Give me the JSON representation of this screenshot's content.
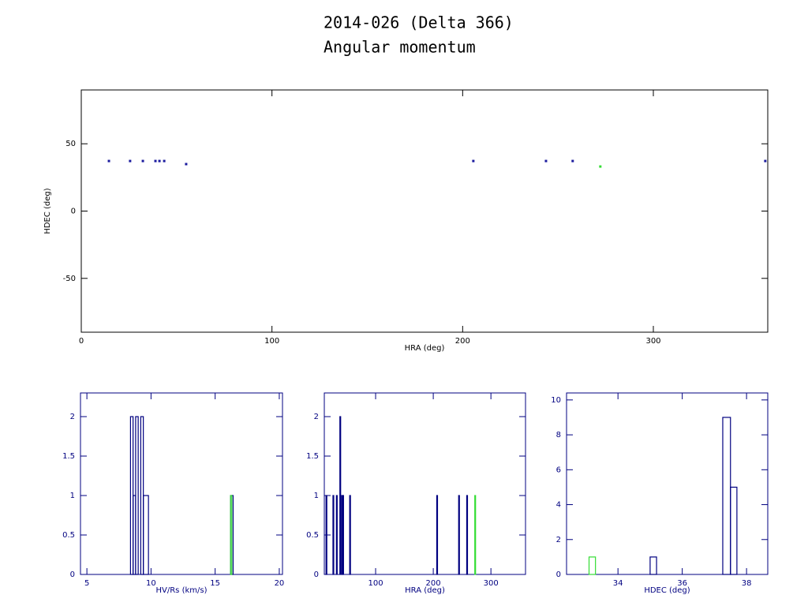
{
  "title": "2014-026 (Delta 366)",
  "subtitle": "Angular momentum",
  "chart_data": [
    {
      "type": "scatter",
      "xlabel": "HRA (deg)",
      "ylabel": "HDEC (deg)",
      "xlim": [
        0,
        360
      ],
      "ylim": [
        -90,
        90
      ],
      "xticks": [
        0,
        100,
        200,
        300
      ],
      "yticks": [
        -50,
        0,
        50
      ],
      "frame_color": "#000000",
      "series": [
        {
          "color": "#1a1a9e",
          "x": [
            14.5,
            25.6,
            32.3,
            38.9,
            41,
            43.5,
            55,
            205.6,
            243.7,
            257.7,
            358.7
          ],
          "values": [
            37.2,
            37.2,
            37.2,
            37.2,
            37.2,
            37.2,
            34.9,
            37.2,
            37.2,
            37.2,
            37.2
          ]
        },
        {
          "color": "#33dd33",
          "x": [
            272.2
          ],
          "values": [
            33.1
          ]
        }
      ]
    },
    {
      "type": "histogram",
      "xlabel": "HV/Rs (km/s)",
      "xlim": [
        4.5,
        20.25
      ],
      "ylim": [
        0,
        2.3
      ],
      "xticks": [
        5,
        10,
        15,
        20
      ],
      "yticks": [
        0,
        0.5,
        1,
        1.5,
        2
      ],
      "frame_color": "#000080",
      "series": [
        {
          "color": "#000080",
          "bins": [
            8.4,
            8.6,
            8.8,
            9.0,
            9.2,
            9.4,
            9.8,
            16.2,
            16.4
          ],
          "values": [
            2,
            1,
            2,
            0,
            2,
            1,
            0,
            1
          ]
        },
        {
          "color": "#33dd33",
          "bins": [
            16.2,
            16.3
          ],
          "values": [
            1
          ]
        }
      ]
    },
    {
      "type": "histogram",
      "xlabel": "HRA (deg)",
      "xlim": [
        11,
        360
      ],
      "ylim": [
        0,
        2.3
      ],
      "xticks": [
        100,
        200,
        300
      ],
      "yticks": [
        0,
        0.5,
        1,
        1.5,
        2
      ],
      "frame_color": "#000080",
      "series": [
        {
          "color": "#000080",
          "bins": [
            14,
            15,
            26,
            27,
            32,
            33,
            38,
            39,
            41,
            42,
            43,
            44,
            55,
            56,
            206,
            207,
            244,
            245,
            258,
            259
          ],
          "values": [
            1,
            0,
            1,
            0,
            1,
            0,
            2,
            0,
            1,
            0,
            1,
            0,
            1,
            0,
            1,
            0,
            1,
            0,
            1
          ]
        },
        {
          "color": "#33dd33",
          "bins": [
            272,
            273
          ],
          "values": [
            1
          ]
        }
      ]
    },
    {
      "type": "histogram",
      "xlabel": "HDEC (deg)",
      "xlim": [
        32.4,
        38.66
      ],
      "ylim": [
        0,
        10.4
      ],
      "xticks": [
        34,
        36,
        38
      ],
      "yticks": [
        0,
        2,
        4,
        6,
        8,
        10
      ],
      "frame_color": "#000080",
      "series": [
        {
          "color": "#000080",
          "bins": [
            35.0,
            35.2,
            37.26,
            37.5,
            37.7
          ],
          "values": [
            1,
            0,
            9,
            5
          ]
        },
        {
          "color": "#33dd33",
          "bins": [
            33.1,
            33.3
          ],
          "values": [
            1
          ]
        }
      ]
    }
  ]
}
